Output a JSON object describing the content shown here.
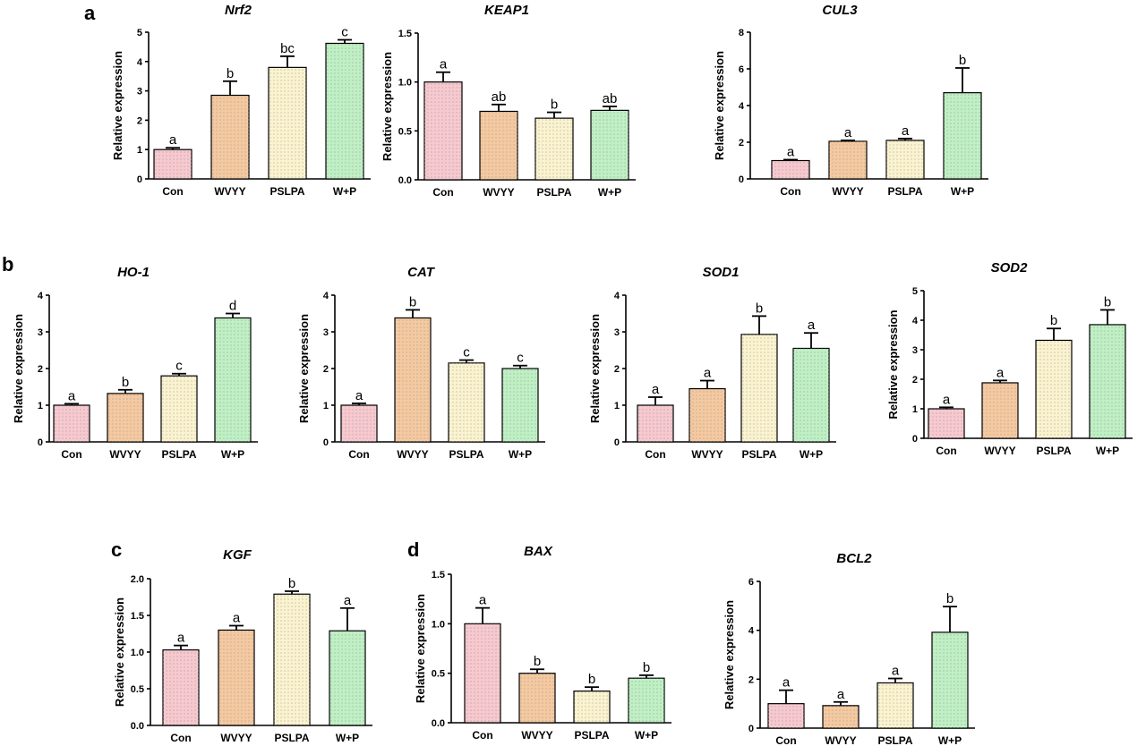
{
  "panels": [
    {
      "letter": "a"
    },
    {
      "letter": "b"
    },
    {
      "letter": "c"
    },
    {
      "letter": "d"
    }
  ],
  "series_colors": [
    "#f7c9cf",
    "#f5c9a0",
    "#fbf3cf",
    "#bff0c4"
  ],
  "chart_data": [
    {
      "type": "bar",
      "title": "Nrf2",
      "ylabel": "Relative expression",
      "categories": [
        "Con",
        "WVYY",
        "PSLPA",
        "W+P"
      ],
      "values": [
        1.0,
        2.85,
        3.8,
        4.62
      ],
      "errors": [
        0.06,
        0.48,
        0.38,
        0.12
      ],
      "letters": [
        "a",
        "b",
        "bc",
        "c"
      ],
      "ylim": [
        0,
        5
      ],
      "yticks": [
        0,
        1,
        2,
        3,
        4,
        5
      ],
      "ytick_labels": [
        "0",
        "1",
        "2",
        "3",
        "4",
        "5"
      ]
    },
    {
      "type": "bar",
      "title": "KEAP1",
      "ylabel": "Relative expression",
      "categories": [
        "Con",
        "WVYY",
        "PSLPA",
        "W+P"
      ],
      "values": [
        1.0,
        0.7,
        0.63,
        0.71
      ],
      "errors": [
        0.1,
        0.07,
        0.06,
        0.04
      ],
      "letters": [
        "a",
        "ab",
        "b",
        "ab"
      ],
      "ylim": [
        0,
        1.5
      ],
      "yticks": [
        0,
        0.5,
        1.0,
        1.5
      ],
      "ytick_labels": [
        "0.0",
        "0.5",
        "1.0",
        "1.5"
      ]
    },
    {
      "type": "bar",
      "title": "CUL3",
      "ylabel": "Relative expression",
      "categories": [
        "Con",
        "WVYY",
        "PSLPA",
        "W+P"
      ],
      "values": [
        1.0,
        2.05,
        2.1,
        4.7
      ],
      "errors": [
        0.05,
        0.05,
        0.1,
        1.35
      ],
      "letters": [
        "a",
        "a",
        "a",
        "b"
      ],
      "ylim": [
        0,
        8
      ],
      "yticks": [
        0,
        2,
        4,
        6,
        8
      ],
      "ytick_labels": [
        "0",
        "2",
        "4",
        "6",
        "8"
      ]
    },
    {
      "type": "bar",
      "title": "HO-1",
      "ylabel": "Relative expression",
      "categories": [
        "Con",
        "WVYY",
        "PSLPA",
        "W+P"
      ],
      "values": [
        1.0,
        1.32,
        1.8,
        3.38
      ],
      "errors": [
        0.04,
        0.1,
        0.06,
        0.12
      ],
      "letters": [
        "a",
        "b",
        "c",
        "d"
      ],
      "ylim": [
        0,
        4
      ],
      "yticks": [
        0,
        1,
        2,
        3,
        4
      ],
      "ytick_labels": [
        "0",
        "1",
        "2",
        "3",
        "4"
      ]
    },
    {
      "type": "bar",
      "title": "CAT",
      "ylabel": "Relative expression",
      "categories": [
        "Con",
        "WVYY",
        "PSLPA",
        "W+P"
      ],
      "values": [
        1.0,
        3.38,
        2.15,
        2.0
      ],
      "errors": [
        0.05,
        0.22,
        0.08,
        0.08
      ],
      "letters": [
        "a",
        "b",
        "c",
        "c"
      ],
      "ylim": [
        0,
        4
      ],
      "yticks": [
        0,
        1,
        2,
        3,
        4
      ],
      "ytick_labels": [
        "0",
        "1",
        "2",
        "3",
        "4"
      ]
    },
    {
      "type": "bar",
      "title": "SOD1",
      "ylabel": "Relative expression",
      "categories": [
        "Con",
        "WVYY",
        "PSLPA",
        "W+P"
      ],
      "values": [
        1.0,
        1.45,
        2.93,
        2.55
      ],
      "errors": [
        0.22,
        0.22,
        0.5,
        0.42
      ],
      "letters": [
        "a",
        "a",
        "b",
        "a"
      ],
      "ylim": [
        0,
        4
      ],
      "yticks": [
        0,
        1,
        2,
        3,
        4
      ],
      "ytick_labels": [
        "0",
        "1",
        "2",
        "3",
        "4"
      ]
    },
    {
      "type": "bar",
      "title": "SOD2",
      "ylabel": "Relative expression",
      "categories": [
        "Con",
        "WVYY",
        "PSLPA",
        "W+P"
      ],
      "values": [
        1.0,
        1.88,
        3.32,
        3.85
      ],
      "errors": [
        0.05,
        0.08,
        0.4,
        0.5
      ],
      "letters": [
        "a",
        "a",
        "b",
        "b"
      ],
      "ylim": [
        0,
        5
      ],
      "yticks": [
        0,
        1,
        2,
        3,
        4,
        5
      ],
      "ytick_labels": [
        "0",
        "1",
        "2",
        "3",
        "4",
        "5"
      ]
    },
    {
      "type": "bar",
      "title": "KGF",
      "ylabel": "Relative expression",
      "categories": [
        "Con",
        "WVYY",
        "PSLPA",
        "W+P"
      ],
      "values": [
        1.03,
        1.3,
        1.79,
        1.29
      ],
      "errors": [
        0.06,
        0.06,
        0.04,
        0.31
      ],
      "letters": [
        "a",
        "a",
        "b",
        "a"
      ],
      "ylim": [
        0,
        2.0
      ],
      "yticks": [
        0,
        0.5,
        1.0,
        1.5,
        2.0
      ],
      "ytick_labels": [
        "0.0",
        "0.5",
        "1.0",
        "1.5",
        "2.0"
      ]
    },
    {
      "type": "bar",
      "title": "BAX",
      "ylabel": "Relative expression",
      "categories": [
        "Con",
        "WVYY",
        "PSLPA",
        "W+P"
      ],
      "values": [
        1.0,
        0.5,
        0.32,
        0.45
      ],
      "errors": [
        0.16,
        0.04,
        0.04,
        0.03
      ],
      "letters": [
        "a",
        "b",
        "b",
        "b"
      ],
      "ylim": [
        0,
        1.5
      ],
      "yticks": [
        0,
        0.5,
        1.0,
        1.5
      ],
      "ytick_labels": [
        "0.0",
        "0.5",
        "1.0",
        "1.5"
      ]
    },
    {
      "type": "bar",
      "title": "BCL2",
      "ylabel": "Relative expression",
      "categories": [
        "Con",
        "WVYY",
        "PSLPA",
        "W+P"
      ],
      "values": [
        1.0,
        0.92,
        1.85,
        3.92
      ],
      "errors": [
        0.55,
        0.15,
        0.18,
        1.05
      ],
      "letters": [
        "a",
        "a",
        "a",
        "b"
      ],
      "ylim": [
        0,
        6
      ],
      "yticks": [
        0,
        2,
        4,
        6
      ],
      "ytick_labels": [
        "0",
        "2",
        "4",
        "6"
      ]
    }
  ]
}
